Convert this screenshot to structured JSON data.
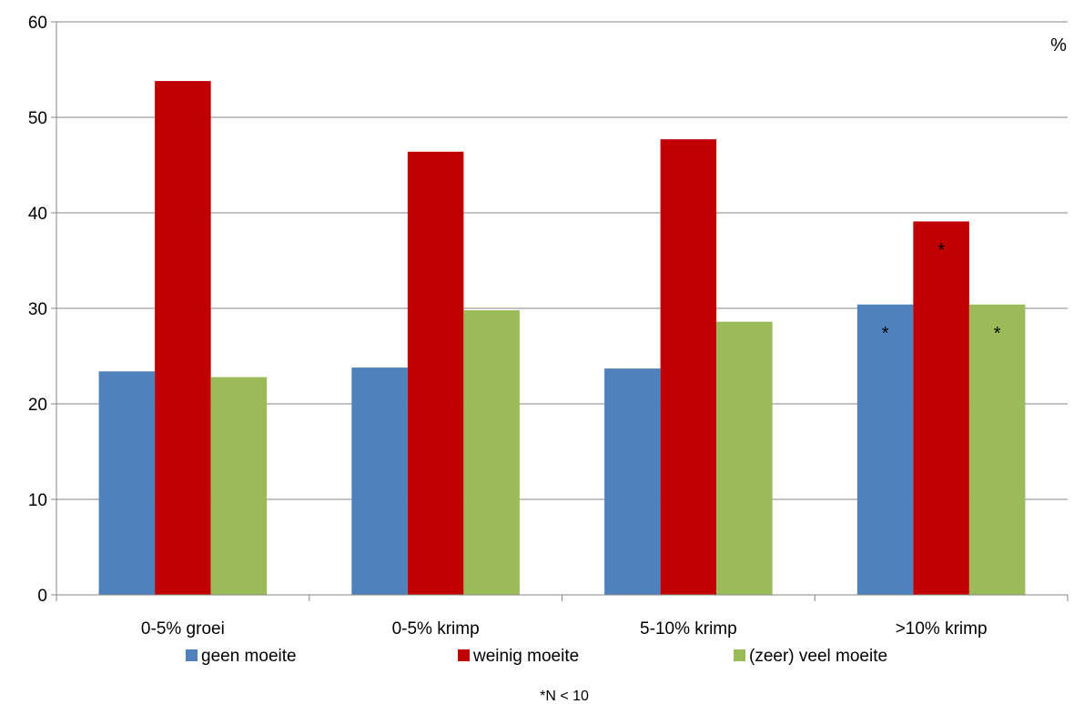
{
  "chart_data": {
    "type": "bar",
    "categories": [
      "0-5% groei",
      "0-5% krimp",
      "5-10% krimp",
      ">10% krimp"
    ],
    "series": [
      {
        "name": "geen moeite",
        "color": "#4F81BD",
        "values": [
          23.4,
          23.8,
          23.7,
          30.4
        ],
        "markers": [
          "",
          "",
          "",
          "*"
        ]
      },
      {
        "name": "weinig moeite",
        "color": "#C00000",
        "values": [
          53.8,
          46.4,
          47.7,
          39.1
        ],
        "markers": [
          "",
          "",
          "",
          "*"
        ]
      },
      {
        "name": "(zeer) veel moeite",
        "color": "#9BBB59",
        "values": [
          22.8,
          29.8,
          28.6,
          30.4
        ],
        "markers": [
          "",
          "",
          "",
          "*"
        ]
      }
    ],
    "yticks": [
      0,
      10,
      20,
      30,
      40,
      50,
      60
    ],
    "ylim": [
      0,
      60
    ],
    "unit_label": "%",
    "footnote": "*N < 10",
    "grid": true,
    "legend_position": "bottom"
  }
}
